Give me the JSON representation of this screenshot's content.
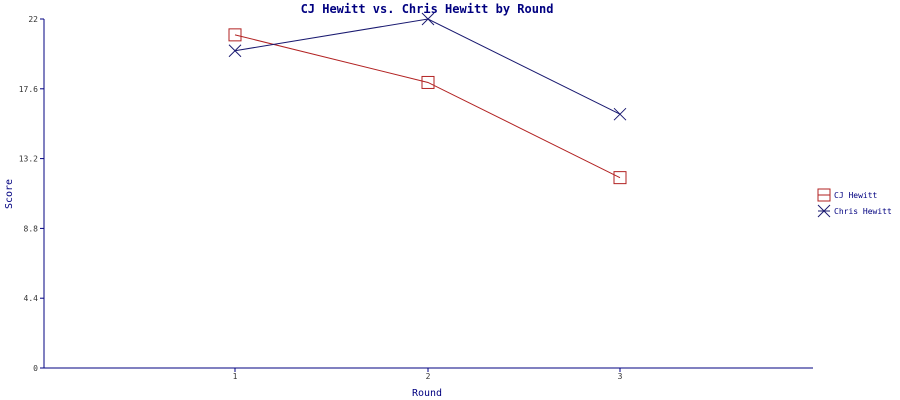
{
  "chart_data": {
    "type": "line",
    "title": "CJ Hewitt vs. Chris Hewitt by Round",
    "xlabel": "Round",
    "ylabel": "Score",
    "categories": [
      "1",
      "2",
      "3"
    ],
    "x": [
      1,
      2,
      3
    ],
    "ylim": [
      0,
      22
    ],
    "yticks": [
      "0",
      "4.4",
      "8.8",
      "13.2",
      "17.6",
      "22"
    ],
    "ytick_values": [
      0,
      4.4,
      8.8,
      13.2,
      17.6,
      22
    ],
    "grid": false,
    "legend_position": "right",
    "series": [
      {
        "name": "CJ Hewitt",
        "values": [
          21,
          18,
          12
        ],
        "color": "#b22222",
        "marker": "square"
      },
      {
        "name": "Chris Hewitt",
        "values": [
          20,
          22,
          16
        ],
        "color": "#191970",
        "marker": "x"
      }
    ]
  }
}
